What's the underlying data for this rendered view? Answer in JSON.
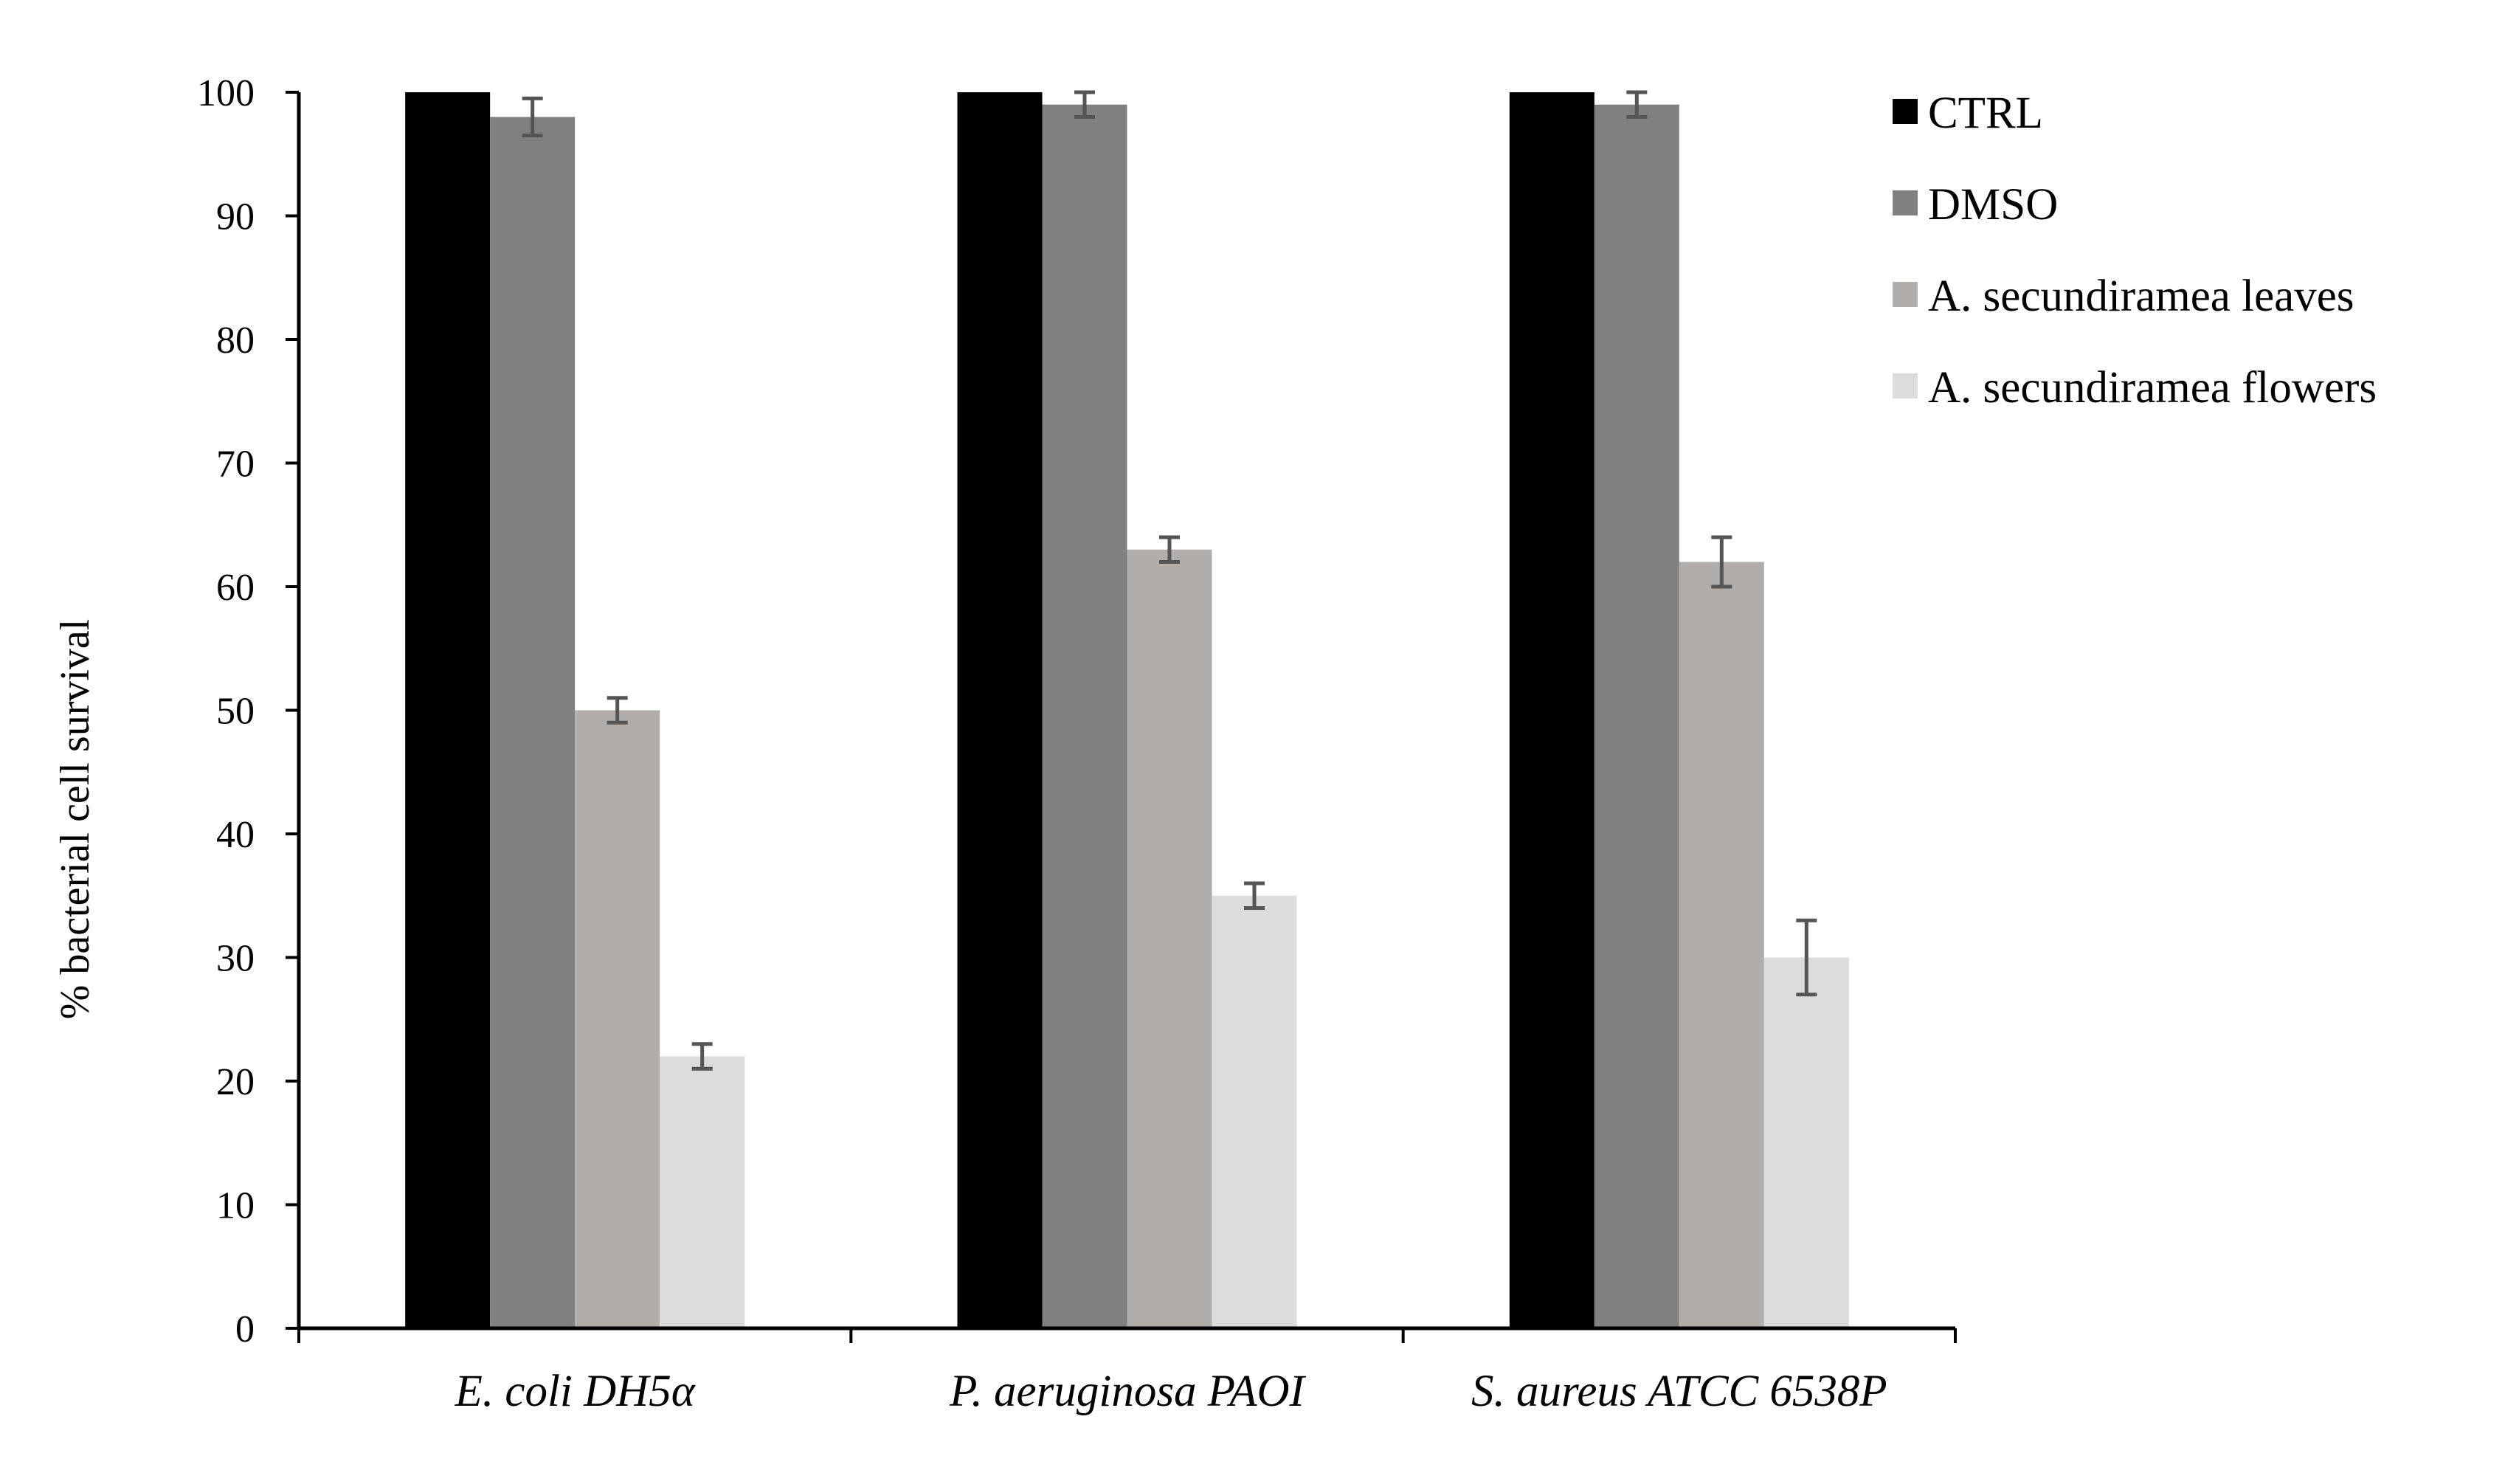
{
  "chart_data": {
    "type": "bar",
    "title": "",
    "xlabel": "",
    "ylabel": "% bacterial cell survival",
    "ylim": [
      0,
      100
    ],
    "yticks": [
      0,
      10,
      20,
      30,
      40,
      50,
      60,
      70,
      80,
      90,
      100
    ],
    "grid": false,
    "legend_position": "top-right",
    "categories": [
      "E. coli DH5α",
      "P. aeruginosa PAOI",
      "S. aureus ATCC 6538P"
    ],
    "series": [
      {
        "name": "CTRL",
        "color": "#000000",
        "values": [
          100,
          100,
          100
        ],
        "errors": [
          0,
          0,
          0
        ]
      },
      {
        "name": "DMSO",
        "color": "#808080",
        "values": [
          98,
          99,
          99
        ],
        "errors": [
          1.5,
          1,
          1
        ]
      },
      {
        "name": "A. secundiramea leaves",
        "color": "#b1adab",
        "values": [
          50,
          63,
          62
        ],
        "errors": [
          1,
          1,
          2
        ]
      },
      {
        "name": "A. secundiramea flowers",
        "color": "#dcdcdc",
        "values": [
          22,
          35,
          30
        ],
        "errors": [
          1,
          1,
          3
        ]
      }
    ]
  }
}
